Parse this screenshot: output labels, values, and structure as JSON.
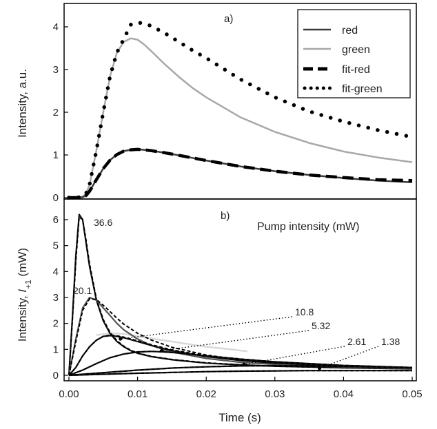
{
  "chart_data": [
    {
      "id": "a",
      "type": "line",
      "panel_label": "a)",
      "ylabel": "Intensity, a.u.",
      "xlim": [
        0,
        0.05
      ],
      "ylim": [
        0,
        4.5
      ],
      "yticks": [
        0,
        1,
        2,
        3,
        4
      ],
      "legend_placement": "top-right",
      "series": [
        {
          "name": "red",
          "style": "solid",
          "color": "#3a3a3a",
          "x": [
            0.0,
            0.001,
            0.002,
            0.0025,
            0.003,
            0.004,
            0.005,
            0.006,
            0.007,
            0.008,
            0.009,
            0.01,
            0.011,
            0.012,
            0.014,
            0.016,
            0.018,
            0.02,
            0.025,
            0.03,
            0.035,
            0.04,
            0.045,
            0.05
          ],
          "y": [
            0.0,
            0.0,
            0.01,
            0.05,
            0.15,
            0.42,
            0.68,
            0.88,
            1.01,
            1.09,
            1.12,
            1.13,
            1.12,
            1.1,
            1.05,
            0.99,
            0.93,
            0.87,
            0.73,
            0.62,
            0.53,
            0.46,
            0.4,
            0.36
          ]
        },
        {
          "name": "green",
          "style": "solid",
          "color": "#a8a8a8",
          "x": [
            0.0,
            0.001,
            0.002,
            0.0025,
            0.003,
            0.004,
            0.005,
            0.006,
            0.007,
            0.008,
            0.009,
            0.01,
            0.011,
            0.012,
            0.014,
            0.016,
            0.018,
            0.02,
            0.025,
            0.03,
            0.035,
            0.04,
            0.045,
            0.05
          ],
          "y": [
            0.0,
            0.0,
            0.02,
            0.1,
            0.3,
            1.1,
            2.0,
            2.85,
            3.4,
            3.65,
            3.73,
            3.7,
            3.58,
            3.43,
            3.12,
            2.83,
            2.57,
            2.35,
            1.88,
            1.54,
            1.28,
            1.08,
            0.94,
            0.83
          ]
        },
        {
          "name": "fit-red",
          "style": "dash",
          "color": "#000000",
          "x": [
            0.0,
            0.001,
            0.002,
            0.0025,
            0.003,
            0.004,
            0.005,
            0.006,
            0.007,
            0.008,
            0.009,
            0.01,
            0.011,
            0.012,
            0.014,
            0.016,
            0.018,
            0.02,
            0.025,
            0.03,
            0.035,
            0.04,
            0.045,
            0.05
          ],
          "y": [
            0.0,
            0.0,
            0.01,
            0.05,
            0.15,
            0.42,
            0.68,
            0.88,
            1.01,
            1.09,
            1.12,
            1.13,
            1.12,
            1.1,
            1.05,
            0.99,
            0.93,
            0.87,
            0.73,
            0.62,
            0.53,
            0.47,
            0.42,
            0.4
          ]
        },
        {
          "name": "fit-green",
          "style": "dot",
          "color": "#000000",
          "x": [
            0.0,
            0.001,
            0.002,
            0.0025,
            0.003,
            0.004,
            0.005,
            0.006,
            0.007,
            0.008,
            0.009,
            0.01,
            0.011,
            0.012,
            0.014,
            0.016,
            0.018,
            0.02,
            0.025,
            0.03,
            0.035,
            0.04,
            0.045,
            0.05
          ],
          "y": [
            0.0,
            0.0,
            0.02,
            0.1,
            0.3,
            1.1,
            2.0,
            2.85,
            3.4,
            3.72,
            4.05,
            4.1,
            4.08,
            4.02,
            3.85,
            3.65,
            3.45,
            3.27,
            2.77,
            2.35,
            2.02,
            1.78,
            1.58,
            1.42
          ]
        }
      ]
    },
    {
      "id": "b",
      "type": "line",
      "panel_label": "b)",
      "xlabel": "Time (s)",
      "ylabel_prefix": "Intensity, ",
      "ylabel_symbol": "I",
      "ylabel_subscript": "+1",
      "ylabel_suffix": " (mW)",
      "xlim": [
        0,
        0.05
      ],
      "ylim": [
        -0.1,
        6.7
      ],
      "xticks": [
        0.0,
        0.01,
        0.02,
        0.03,
        0.04,
        0.05
      ],
      "xtick_labels": [
        "0.00",
        "0.01",
        "0.02",
        "0.03",
        "0.04",
        "0.05"
      ],
      "yticks": [
        0,
        1,
        2,
        3,
        4,
        5,
        6
      ],
      "annotation_title": "Pump intensity (mW)",
      "series": [
        {
          "label": "36.6",
          "color": "#000000",
          "x": [
            0.0,
            0.0005,
            0.001,
            0.0015,
            0.002,
            0.0025,
            0.003,
            0.004,
            0.005,
            0.006,
            0.007,
            0.008,
            0.009,
            0.01,
            0.012,
            0.015,
            0.02,
            0.025,
            0.03,
            0.04,
            0.05
          ],
          "y": [
            0.0,
            2.2,
            4.6,
            6.2,
            6.0,
            5.1,
            4.2,
            2.9,
            2.1,
            1.6,
            1.3,
            1.1,
            0.95,
            0.85,
            0.72,
            0.6,
            0.47,
            0.4,
            0.35,
            0.29,
            0.25
          ],
          "fit_y": [
            0.0,
            2.1,
            4.4,
            6.1,
            6.0,
            5.2,
            4.3,
            2.95,
            2.15,
            1.65,
            1.33,
            1.12,
            0.97,
            0.86,
            0.73,
            0.61,
            0.48,
            0.41,
            0.35,
            0.29,
            0.25
          ]
        },
        {
          "label": "20.1",
          "color": "#000000",
          "x": [
            0.0,
            0.001,
            0.002,
            0.003,
            0.004,
            0.005,
            0.006,
            0.007,
            0.008,
            0.01,
            0.012,
            0.015,
            0.02,
            0.025,
            0.03,
            0.04,
            0.05
          ],
          "y": [
            0.0,
            1.4,
            2.6,
            3.0,
            2.9,
            2.6,
            2.3,
            2.0,
            1.75,
            1.4,
            1.15,
            0.9,
            0.65,
            0.5,
            0.42,
            0.32,
            0.26
          ],
          "fit_y": [
            0.0,
            1.3,
            2.5,
            2.95,
            2.92,
            2.7,
            2.45,
            2.2,
            1.97,
            1.62,
            1.36,
            1.08,
            0.78,
            0.6,
            0.48,
            0.36,
            0.28
          ]
        },
        {
          "label": "10.8",
          "color": "#000000",
          "x": [
            0.0,
            0.001,
            0.002,
            0.003,
            0.004,
            0.005,
            0.006,
            0.007,
            0.008,
            0.01,
            0.012,
            0.015,
            0.02,
            0.025,
            0.03,
            0.04,
            0.05
          ],
          "y": [
            0.0,
            0.3,
            0.75,
            1.1,
            1.35,
            1.5,
            1.53,
            1.5,
            1.45,
            1.3,
            1.15,
            0.95,
            0.72,
            0.57,
            0.47,
            0.35,
            0.28
          ],
          "fit_y": [
            0.0,
            0.3,
            0.75,
            1.1,
            1.35,
            1.5,
            1.55,
            1.52,
            1.47,
            1.33,
            1.18,
            0.98,
            0.75,
            0.59,
            0.48,
            0.35,
            0.28
          ]
        },
        {
          "label": "5.32",
          "color": "#000000",
          "x": [
            0.0,
            0.002,
            0.004,
            0.006,
            0.008,
            0.01,
            0.012,
            0.014,
            0.016,
            0.02,
            0.025,
            0.03,
            0.04,
            0.05
          ],
          "y": [
            0.0,
            0.2,
            0.45,
            0.68,
            0.82,
            0.9,
            0.92,
            0.9,
            0.86,
            0.75,
            0.62,
            0.52,
            0.38,
            0.3
          ],
          "fit_y": [
            0.0,
            0.2,
            0.45,
            0.68,
            0.82,
            0.9,
            0.92,
            0.9,
            0.86,
            0.76,
            0.63,
            0.52,
            0.38,
            0.3
          ]
        },
        {
          "label": "2.61",
          "color": "#000000",
          "x": [
            0.0,
            0.005,
            0.01,
            0.015,
            0.02,
            0.025,
            0.03,
            0.035,
            0.04,
            0.045,
            0.05
          ],
          "y": [
            0.0,
            0.1,
            0.2,
            0.28,
            0.33,
            0.36,
            0.37,
            0.36,
            0.34,
            0.32,
            0.3
          ],
          "fit_y": [
            0.0,
            0.1,
            0.2,
            0.28,
            0.33,
            0.36,
            0.37,
            0.36,
            0.34,
            0.32,
            0.3
          ]
        },
        {
          "label": "1.38",
          "color": "#000000",
          "x": [
            0.0,
            0.005,
            0.01,
            0.015,
            0.02,
            0.025,
            0.03,
            0.035,
            0.04,
            0.045,
            0.05
          ],
          "y": [
            0.0,
            0.04,
            0.08,
            0.11,
            0.14,
            0.16,
            0.17,
            0.18,
            0.18,
            0.18,
            0.18
          ],
          "fit_y": [
            0.0,
            0.04,
            0.08,
            0.11,
            0.14,
            0.16,
            0.17,
            0.18,
            0.18,
            0.18,
            0.18
          ]
        }
      ],
      "light_traces": [
        {
          "name": "light-trace-green",
          "x": [
            0.004,
            0.006,
            0.008,
            0.01,
            0.012,
            0.015,
            0.018,
            0.02,
            0.023,
            0.026
          ],
          "y": [
            1.55,
            1.62,
            1.6,
            1.5,
            1.42,
            1.3,
            1.18,
            1.1,
            1.02,
            0.92
          ]
        }
      ],
      "label_pointers": [
        {
          "label": "10.8",
          "x": 0.0075,
          "y": 1.4
        },
        {
          "label": "5.32",
          "x": 0.0135,
          "y": 0.95
        },
        {
          "label": "2.61",
          "x": 0.0255,
          "y": 0.42
        },
        {
          "label": "1.38",
          "x": 0.0365,
          "y": 0.27
        }
      ]
    }
  ]
}
